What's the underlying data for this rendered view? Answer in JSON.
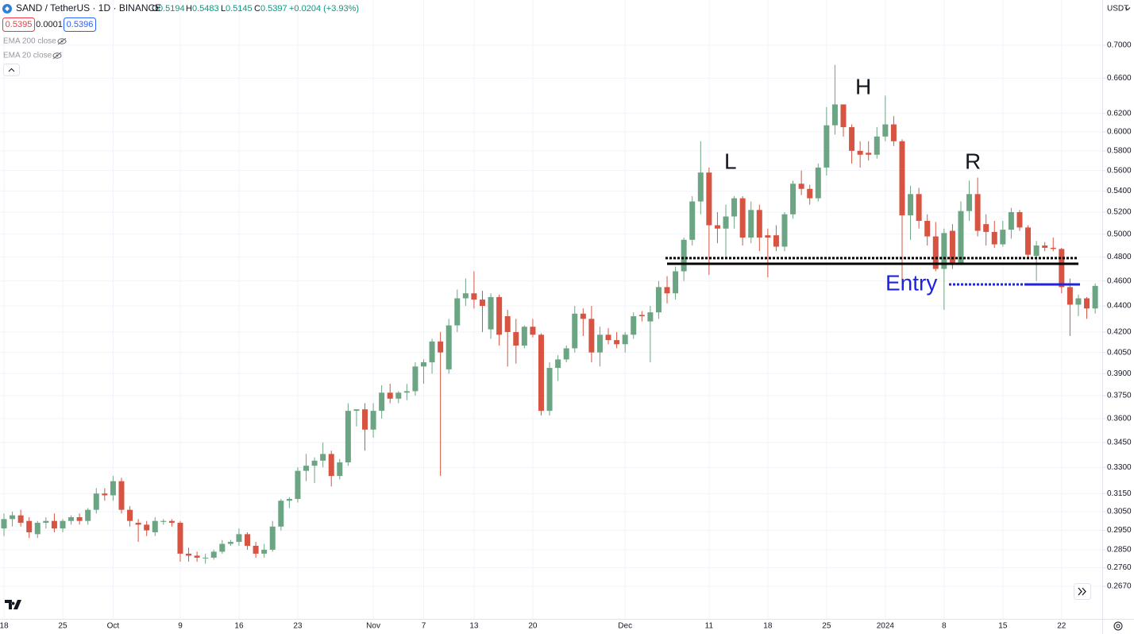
{
  "ui": {
    "symbol": "SAND / TetherUS · 1D · BINANCE",
    "ohlc": [
      {
        "key": "O",
        "value": "0.5194"
      },
      {
        "key": "H",
        "value": "0.5483"
      },
      {
        "key": "L",
        "value": "0.5145"
      },
      {
        "key": "C",
        "value": "0.5397"
      }
    ],
    "change": "+0.0204 (+3.93%)",
    "sell": "0.5395",
    "spread": "0.0001",
    "buy": "0.5396",
    "indicators": [
      "EMA 200 close",
      "EMA 20 close"
    ],
    "currency": "USDT"
  },
  "chart_data": {
    "type": "candlestick",
    "log_scale": true,
    "grid": true,
    "up_color": "#6ba583",
    "down_color": "#d75442",
    "categories": [
      "18",
      null,
      null,
      null,
      null,
      null,
      null,
      "25",
      null,
      null,
      null,
      null,
      null,
      "Oct",
      null,
      null,
      null,
      null,
      null,
      null,
      null,
      "9",
      null,
      null,
      null,
      null,
      null,
      null,
      "16",
      null,
      null,
      null,
      null,
      null,
      null,
      "23",
      null,
      null,
      null,
      null,
      null,
      null,
      null,
      null,
      "Nov",
      null,
      null,
      null,
      null,
      null,
      "7",
      null,
      null,
      null,
      null,
      null,
      "13",
      null,
      null,
      null,
      null,
      null,
      null,
      "20",
      null,
      null,
      null,
      null,
      null,
      null,
      null,
      null,
      null,
      null,
      "Dec",
      null,
      null,
      null,
      null,
      null,
      null,
      null,
      null,
      null,
      "11",
      null,
      null,
      null,
      null,
      null,
      null,
      "18",
      null,
      null,
      null,
      null,
      null,
      null,
      "25",
      null,
      null,
      null,
      null,
      null,
      null,
      "2024",
      null,
      null,
      null,
      null,
      null,
      null,
      "8",
      null,
      null,
      null,
      null,
      null,
      null,
      "15",
      null,
      null,
      null,
      null,
      null,
      null,
      "22",
      null,
      null,
      null,
      null
    ],
    "open": [
      0.296,
      0.301,
      0.303,
      0.3,
      0.293,
      0.299,
      0.3,
      0.296,
      0.3,
      0.302,
      0.3,
      0.306,
      0.315,
      0.314,
      0.322,
      0.306,
      0.299,
      0.298,
      0.294,
      0.2995,
      0.3,
      0.299,
      0.283,
      0.282,
      0.281,
      0.281,
      0.284,
      0.288,
      0.289,
      0.293,
      0.287,
      0.283,
      0.285,
      0.297,
      0.311,
      0.312,
      0.328,
      0.331,
      0.334,
      0.338,
      0.325,
      0.333,
      0.365,
      0.366,
      0.353,
      0.365,
      0.377,
      0.373,
      0.377,
      0.378,
      0.395,
      0.398,
      0.413,
      0.393,
      0.425,
      0.446,
      0.45,
      0.445,
      0.422,
      0.447,
      0.432,
      0.42,
      0.41,
      0.424,
      0.418,
      0.365,
      0.394,
      0.4,
      0.408,
      0.434,
      0.43,
      0.405,
      0.418,
      0.414,
      0.411,
      0.418,
      0.433,
      0.428,
      0.435,
      0.455,
      0.45,
      0.468,
      0.495,
      0.53,
      0.558,
      0.508,
      0.505,
      0.516,
      0.533,
      0.497,
      0.522,
      0.499,
      0.499,
      0.489,
      0.518,
      0.547,
      0.542,
      0.533,
      0.563,
      0.607,
      0.63,
      0.605,
      0.58,
      0.578,
      0.576,
      0.595,
      0.608,
      0.59,
      0.517,
      0.537,
      0.512,
      0.498,
      0.47,
      0.503,
      0.474,
      0.521,
      0.537,
      0.509,
      0.502,
      0.491,
      0.504,
      0.52,
      0.506,
      0.481,
      0.49,
      0.488,
      0.487,
      0.455,
      0.441,
      0.446,
      0.438
    ],
    "high": [
      0.304,
      0.305,
      0.306,
      0.302,
      0.3,
      0.302,
      0.304,
      0.301,
      0.303,
      0.304,
      0.307,
      0.318,
      0.318,
      0.325,
      0.324,
      0.308,
      0.301,
      0.3,
      0.302,
      0.301,
      0.301,
      0.3,
      0.286,
      0.284,
      0.283,
      0.285,
      0.29,
      0.29,
      0.296,
      0.294,
      0.289,
      0.288,
      0.3,
      0.312,
      0.313,
      0.33,
      0.338,
      0.336,
      0.345,
      0.34,
      0.335,
      0.37,
      0.366,
      0.37,
      0.37,
      0.382,
      0.383,
      0.378,
      0.383,
      0.398,
      0.4,
      0.415,
      0.42,
      0.43,
      0.453,
      0.462,
      0.468,
      0.452,
      0.45,
      0.449,
      0.437,
      0.43,
      0.425,
      0.43,
      0.419,
      0.398,
      0.403,
      0.41,
      0.44,
      0.438,
      0.44,
      0.424,
      0.423,
      0.42,
      0.42,
      0.435,
      0.436,
      0.44,
      0.46,
      0.464,
      0.472,
      0.497,
      0.535,
      0.59,
      0.563,
      0.52,
      0.527,
      0.535,
      0.535,
      0.53,
      0.527,
      0.505,
      0.508,
      0.52,
      0.55,
      0.56,
      0.546,
      0.567,
      0.627,
      0.676,
      0.63,
      0.608,
      0.59,
      0.59,
      0.605,
      0.64,
      0.617,
      0.592,
      0.545,
      0.543,
      0.518,
      0.511,
      0.505,
      0.509,
      0.53,
      0.55,
      0.553,
      0.518,
      0.512,
      0.512,
      0.524,
      0.522,
      0.508,
      0.494,
      0.493,
      0.497,
      0.488,
      0.462,
      0.449,
      0.447,
      0.458
    ],
    "low": [
      0.292,
      0.297,
      0.297,
      0.291,
      0.291,
      0.296,
      0.294,
      0.294,
      0.298,
      0.298,
      0.298,
      0.304,
      0.311,
      0.311,
      0.304,
      0.297,
      0.289,
      0.292,
      0.292,
      0.298,
      0.297,
      0.279,
      0.279,
      0.279,
      0.278,
      0.28,
      0.283,
      0.287,
      0.287,
      0.285,
      0.281,
      0.281,
      0.284,
      0.295,
      0.307,
      0.31,
      0.322,
      0.321,
      0.33,
      0.319,
      0.323,
      0.331,
      0.355,
      0.34,
      0.348,
      0.36,
      0.37,
      0.37,
      0.372,
      0.375,
      0.383,
      0.39,
      0.325,
      0.39,
      0.42,
      0.44,
      0.438,
      0.42,
      0.415,
      0.41,
      0.395,
      0.397,
      0.408,
      0.416,
      0.362,
      0.362,
      0.385,
      0.398,
      0.405,
      0.417,
      0.398,
      0.395,
      0.411,
      0.408,
      0.405,
      0.415,
      0.428,
      0.398,
      0.43,
      0.442,
      0.445,
      0.46,
      0.49,
      0.518,
      0.465,
      0.492,
      0.48,
      0.505,
      0.49,
      0.492,
      0.485,
      0.463,
      0.485,
      0.485,
      0.514,
      0.536,
      0.527,
      0.53,
      0.555,
      0.597,
      0.595,
      0.567,
      0.563,
      0.57,
      0.572,
      0.59,
      0.585,
      0.46,
      0.495,
      0.505,
      0.49,
      0.468,
      0.437,
      0.47,
      0.473,
      0.512,
      0.498,
      0.49,
      0.488,
      0.489,
      0.496,
      0.503,
      0.48,
      0.46,
      0.485,
      0.485,
      0.45,
      0.417,
      0.432,
      0.43,
      0.434
    ],
    "close": [
      0.301,
      0.303,
      0.299,
      0.294,
      0.299,
      0.3,
      0.296,
      0.3,
      0.302,
      0.3,
      0.306,
      0.315,
      0.314,
      0.322,
      0.306,
      0.3,
      0.298,
      0.295,
      0.3,
      0.3,
      0.299,
      0.283,
      0.282,
      0.281,
      0.281,
      0.284,
      0.288,
      0.289,
      0.293,
      0.287,
      0.283,
      0.285,
      0.297,
      0.311,
      0.312,
      0.328,
      0.331,
      0.334,
      0.338,
      0.325,
      0.333,
      0.365,
      0.366,
      0.353,
      0.365,
      0.377,
      0.373,
      0.377,
      0.378,
      0.395,
      0.398,
      0.413,
      0.405,
      0.425,
      0.446,
      0.45,
      0.445,
      0.44,
      0.447,
      0.418,
      0.42,
      0.41,
      0.424,
      0.418,
      0.365,
      0.394,
      0.4,
      0.408,
      0.434,
      0.43,
      0.405,
      0.418,
      0.414,
      0.411,
      0.418,
      0.432,
      0.432,
      0.435,
      0.455,
      0.45,
      0.468,
      0.495,
      0.53,
      0.558,
      0.508,
      0.505,
      0.516,
      0.533,
      0.497,
      0.522,
      0.497,
      0.497,
      0.489,
      0.518,
      0.547,
      0.542,
      0.533,
      0.563,
      0.607,
      0.63,
      0.605,
      0.58,
      0.576,
      0.576,
      0.595,
      0.608,
      0.59,
      0.517,
      0.537,
      0.512,
      0.498,
      0.47,
      0.501,
      0.474,
      0.521,
      0.537,
      0.503,
      0.502,
      0.491,
      0.504,
      0.52,
      0.506,
      0.482,
      0.49,
      0.488,
      0.487,
      0.455,
      0.441,
      0.446,
      0.438,
      0.456
    ],
    "ylim": [
      0.2516,
      0.7588
    ],
    "yticks": [
      {
        "value": 0.7,
        "label": "0.7000"
      },
      {
        "value": 0.66,
        "label": "0.6600"
      },
      {
        "value": 0.62,
        "label": "0.6200"
      },
      {
        "value": 0.6,
        "label": "0.6000"
      },
      {
        "value": 0.58,
        "label": "0.5800"
      },
      {
        "value": 0.56,
        "label": "0.5600"
      },
      {
        "value": 0.54,
        "label": "0.5400"
      },
      {
        "value": 0.52,
        "label": "0.5200"
      },
      {
        "value": 0.5,
        "label": "0.5000"
      },
      {
        "value": 0.48,
        "label": "0.4800"
      },
      {
        "value": 0.46,
        "label": "0.4600"
      },
      {
        "value": 0.44,
        "label": "0.4400"
      },
      {
        "value": 0.42,
        "label": "0.4200"
      },
      {
        "value": 0.405,
        "label": "0.4050"
      },
      {
        "value": 0.39,
        "label": "0.3900"
      },
      {
        "value": 0.375,
        "label": "0.3750"
      },
      {
        "value": 0.36,
        "label": "0.3600"
      },
      {
        "value": 0.345,
        "label": "0.3450"
      },
      {
        "value": 0.33,
        "label": "0.3300"
      },
      {
        "value": 0.315,
        "label": "0.3150"
      },
      {
        "value": 0.305,
        "label": "0.3050"
      },
      {
        "value": 0.295,
        "label": "0.2950"
      },
      {
        "value": 0.285,
        "label": "0.2850"
      },
      {
        "value": 0.276,
        "label": "0.2760"
      },
      {
        "value": 0.267,
        "label": "0.2670"
      }
    ],
    "levels": [
      {
        "value": 0.4791,
        "color": "#000000",
        "dashed": true
      },
      {
        "value": 0.4743,
        "color": "#000000",
        "dashed": false
      },
      {
        "value": 0.4572,
        "color": "#1f22e0",
        "dashed": true
      },
      {
        "value": 0.4572,
        "color": "#1f22e0",
        "dashed": false
      }
    ],
    "annotations": [
      "L",
      "H",
      "R"
    ],
    "entry_label": "Entry"
  }
}
